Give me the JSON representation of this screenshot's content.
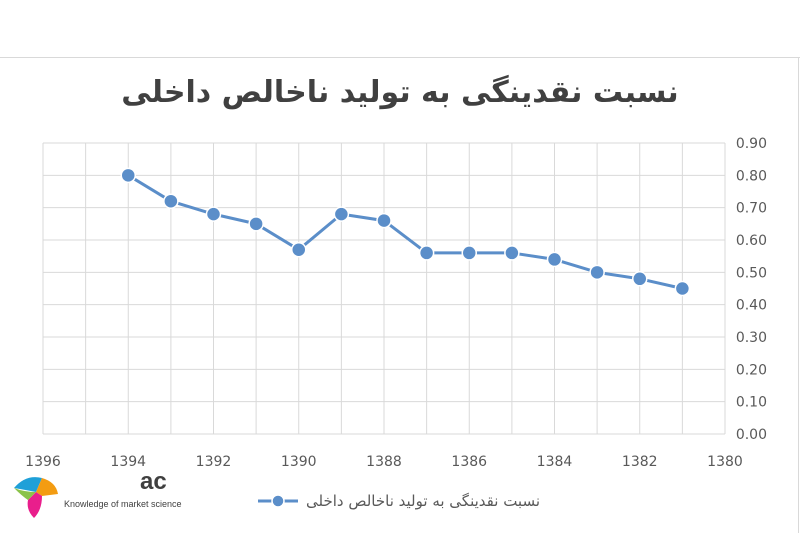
{
  "chart_data": {
    "type": "line",
    "title": "نسبت نقدینگی به تولید ناخالص داخلی",
    "xlabel": "",
    "ylabel": "",
    "x_reversed": true,
    "xlim": [
      1380,
      1396
    ],
    "ylim": [
      0,
      0.9
    ],
    "x_ticks": [
      "1396",
      "1394",
      "1392",
      "1390",
      "1388",
      "1386",
      "1384",
      "1382",
      "1380"
    ],
    "y_ticks": [
      "0.00",
      "0.10",
      "0.20",
      "0.30",
      "0.40",
      "0.50",
      "0.60",
      "0.70",
      "0.80",
      "0.90"
    ],
    "y_axis_side": "right",
    "grid": true,
    "legend_position": "bottom",
    "series": [
      {
        "name": "نسبت نقدینگی به تولید ناخالص داخلی",
        "color": "#5b8ec9",
        "x": [
          1394,
          1393,
          1392,
          1391,
          1390,
          1389,
          1388,
          1387,
          1386,
          1385,
          1384,
          1383,
          1382,
          1381
        ],
        "values": [
          0.8,
          0.72,
          0.68,
          0.65,
          0.57,
          0.68,
          0.66,
          0.56,
          0.56,
          0.56,
          0.54,
          0.5,
          0.48,
          0.45
        ]
      }
    ]
  },
  "watermark": {
    "brand": "ac",
    "tagline": "Knowledge of market science"
  }
}
